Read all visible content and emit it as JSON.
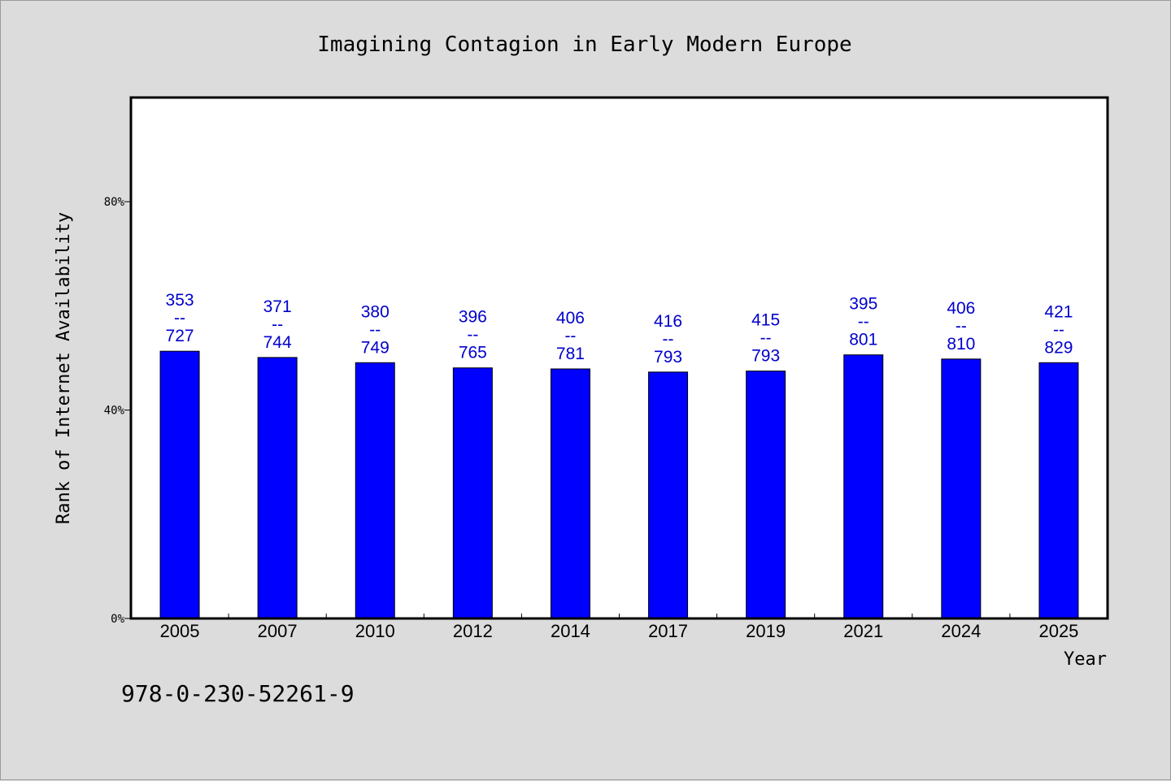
{
  "chart_data": {
    "type": "bar",
    "title": "Imagining Contagion in Early Modern Europe",
    "xlabel": "Year",
    "ylabel": "Rank of Internet Availability",
    "ylim": [
      0,
      100
    ],
    "yticks": [
      {
        "value": 0,
        "label": "0%"
      },
      {
        "value": 40,
        "label": "40%"
      },
      {
        "value": 80,
        "label": "80%"
      }
    ],
    "categories": [
      "2005",
      "2007",
      "2010",
      "2012",
      "2014",
      "2017",
      "2019",
      "2021",
      "2024",
      "2025"
    ],
    "series": [
      {
        "values": [
          51.3,
          50.1,
          49.1,
          48.1,
          47.9,
          47.3,
          47.5,
          50.6,
          49.8,
          49.1
        ],
        "color": "#0000ff",
        "labels": [
          [
            "353",
            "--",
            "727"
          ],
          [
            "371",
            "--",
            "744"
          ],
          [
            "380",
            "--",
            "749"
          ],
          [
            "396",
            "--",
            "765"
          ],
          [
            "406",
            "--",
            "781"
          ],
          [
            "416",
            "--",
            "793"
          ],
          [
            "415",
            "--",
            "793"
          ],
          [
            "395",
            "--",
            "801"
          ],
          [
            "406",
            "--",
            "810"
          ],
          [
            "421",
            "--",
            "829"
          ]
        ]
      }
    ],
    "grid": false,
    "label_color": "#0000cc",
    "background": "#dcdcdc",
    "plot_background": "#ffffff"
  },
  "footer": {
    "isbn": "978-0-230-52261-9"
  }
}
